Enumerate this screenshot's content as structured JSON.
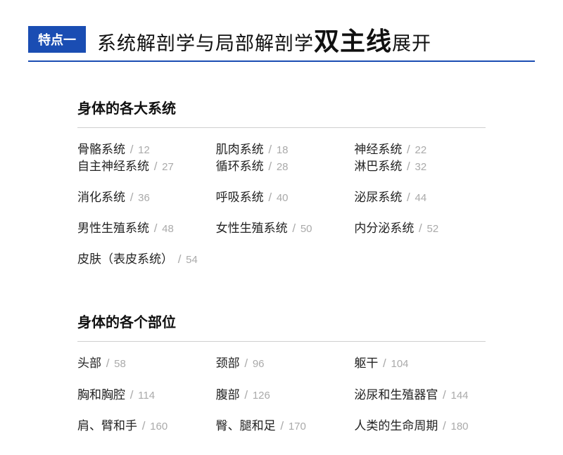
{
  "header": {
    "badge": "特点一",
    "title_prefix": "系统解剖学与局部解剖学",
    "title_emphasis": "双主线",
    "title_suffix": "展开"
  },
  "sections": [
    {
      "title": "身体的各大系统",
      "rows": [
        {
          "style": "tight",
          "items": [
            {
              "label": "骨骼系统",
              "page": "12"
            },
            {
              "label": "肌肉系统",
              "page": "18"
            },
            {
              "label": "神经系统",
              "page": "22"
            }
          ]
        },
        {
          "style": "gap",
          "items": [
            {
              "label": "自主神经系统",
              "page": "27"
            },
            {
              "label": "循环系统",
              "page": "28"
            },
            {
              "label": "淋巴系统",
              "page": "32"
            }
          ]
        },
        {
          "style": "gap",
          "items": [
            {
              "label": "消化系统",
              "page": "36"
            },
            {
              "label": "呼吸系统",
              "page": "40"
            },
            {
              "label": "泌尿系统",
              "page": "44"
            }
          ]
        },
        {
          "style": "gap",
          "items": [
            {
              "label": "男性生殖系统",
              "page": "48"
            },
            {
              "label": "女性生殖系统",
              "page": "50"
            },
            {
              "label": "内分泌系统",
              "page": "52"
            }
          ]
        },
        {
          "style": "gap",
          "items": [
            {
              "label": "皮肤（表皮系统）",
              "page": "54"
            }
          ]
        }
      ]
    },
    {
      "title": "身体的各个部位",
      "rows": [
        {
          "style": "gap",
          "items": [
            {
              "label": "头部",
              "page": "58"
            },
            {
              "label": "颈部",
              "page": "96"
            },
            {
              "label": "躯干",
              "page": "104"
            }
          ]
        },
        {
          "style": "gap",
          "items": [
            {
              "label": "胸和胸腔",
              "page": "114"
            },
            {
              "label": "腹部",
              "page": "126"
            },
            {
              "label": "泌尿和生殖器官",
              "page": "144"
            }
          ]
        },
        {
          "style": "gap",
          "items": [
            {
              "label": "肩、臂和手",
              "page": "160"
            },
            {
              "label": "臀、腿和足",
              "page": "170"
            },
            {
              "label": "人类的生命周期",
              "page": "180"
            }
          ]
        }
      ]
    }
  ],
  "colors": {
    "badge_bg": "#1a4db3",
    "badge_text": "#ffffff",
    "underline": "#1a4db3",
    "divider": "#cfcfcf",
    "text": "#222222",
    "page_num": "#aaaaaa"
  }
}
